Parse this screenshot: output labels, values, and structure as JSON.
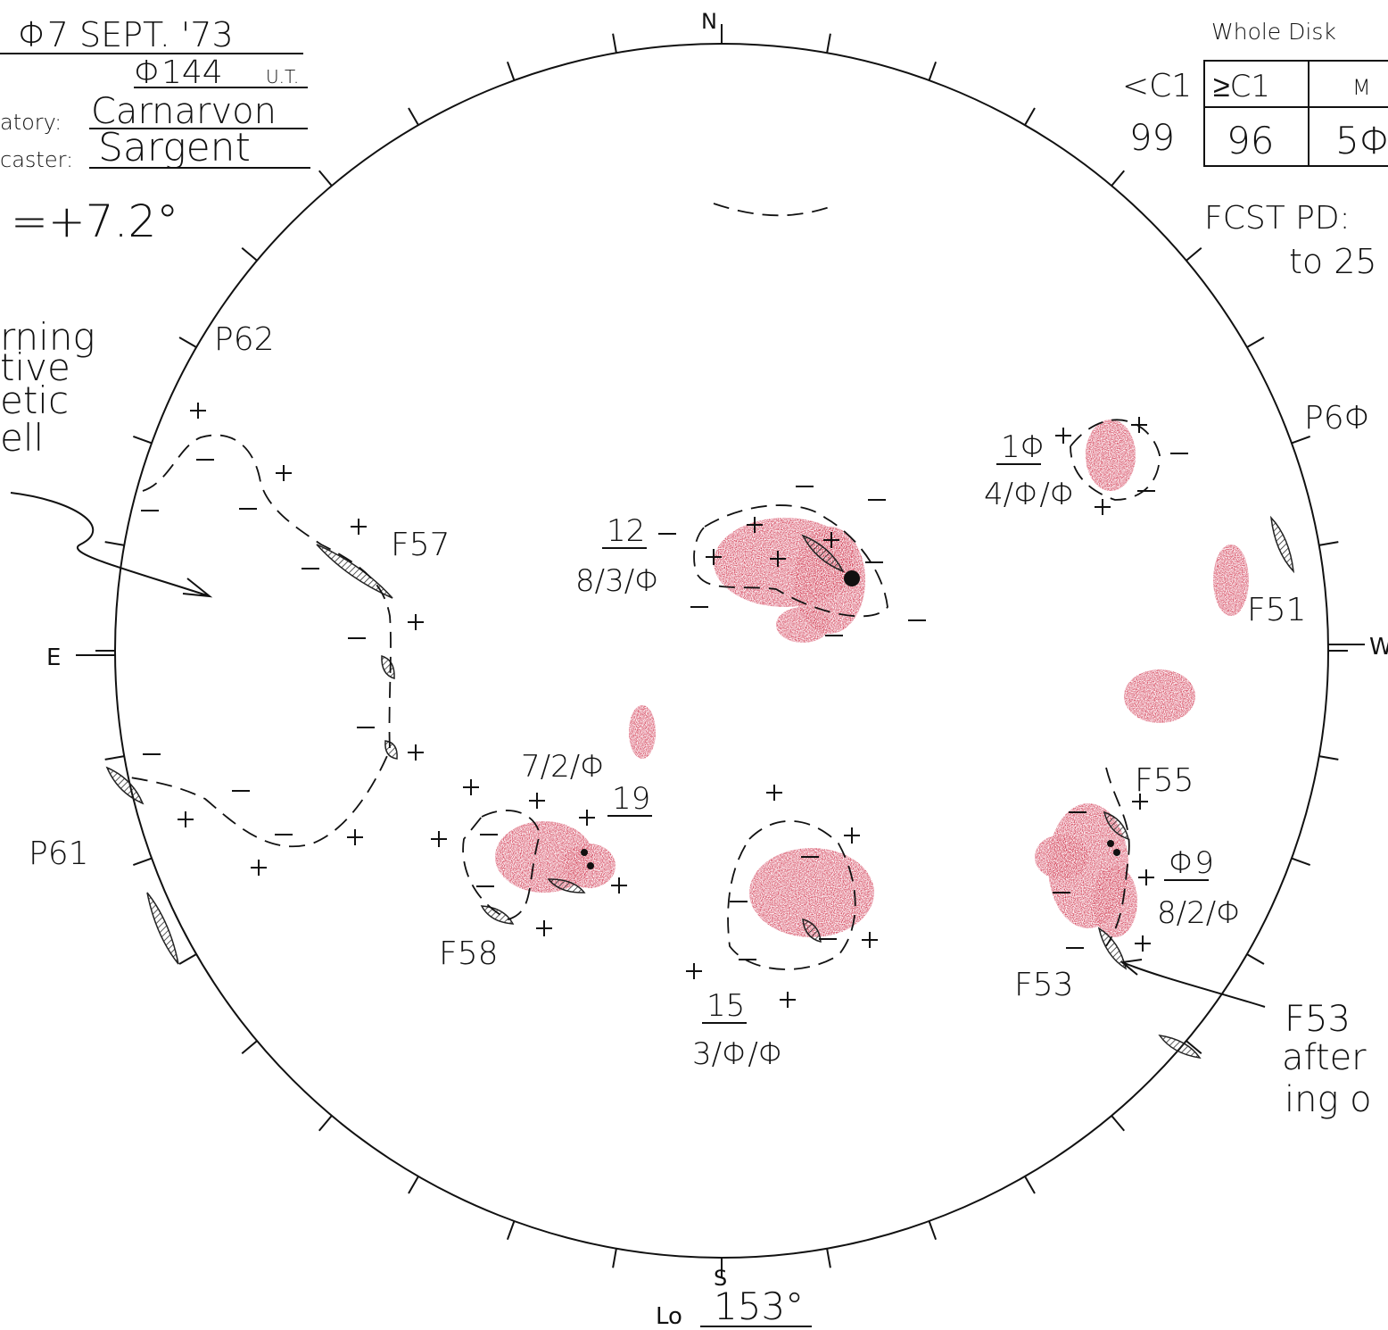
{
  "header": {
    "date": "Φ7 SEPT. '73",
    "time": "Φ144",
    "time_unit": "U.T.",
    "observatory_label": "atory:",
    "observatory": "Carnarvon",
    "forecaster_label": "caster:",
    "forecaster": "Sargent",
    "b0": "=+7.2°"
  },
  "note_left": [
    "rning",
    "tive",
    "etic",
    "ell"
  ],
  "compass": {
    "n": "N",
    "s": "S",
    "e": "E",
    "w": "W"
  },
  "longitude": {
    "label": "Lo",
    "value": "153°"
  },
  "whole_disk": {
    "title": "Whole Disk",
    "headers": [
      "<C1",
      "≥C1",
      "M"
    ],
    "values": [
      "99",
      "96",
      "5Φ"
    ]
  },
  "forecast": {
    "label": "FCST PD:",
    "value": "to 25"
  },
  "plages": [
    "P62",
    "P6Φ",
    "P61"
  ],
  "filaments": [
    "F57",
    "F51",
    "F55",
    "F58",
    "F53"
  ],
  "regions": [
    {
      "number": "12",
      "counts": "8/3/Φ"
    },
    {
      "number": "1Φ",
      "counts": "4/Φ/Φ"
    },
    {
      "number": "19",
      "counts": "7/2/Φ"
    },
    {
      "number": "15",
      "counts": "3/Φ/Φ"
    },
    {
      "number": "Φ9",
      "counts": "8/2/Φ"
    }
  ],
  "annotation": [
    "F53",
    "after",
    "ing o"
  ]
}
